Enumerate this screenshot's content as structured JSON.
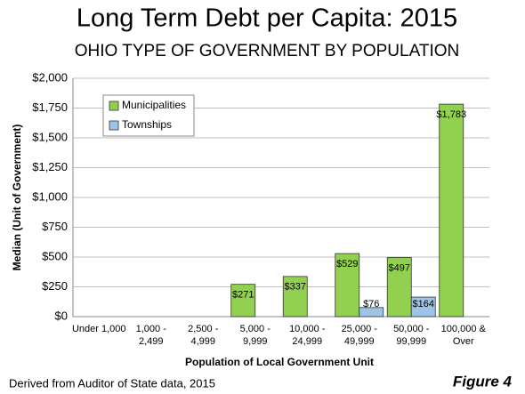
{
  "chart_data": {
    "type": "bar",
    "title": "Long Term Debt per Capita: 2015",
    "subtitle": "OHIO TYPE OF GOVERNMENT BY POPULATION",
    "y_label": "Median  (Unit of Government)",
    "x_label": "Population of Local Government Unit",
    "source": "Derived from Auditor of State data, 2015",
    "figure": "Figure 4",
    "categories": [
      [
        "Under 1,000"
      ],
      [
        "1,000 -",
        "2,499"
      ],
      [
        "2,500 -",
        "4,999"
      ],
      [
        "5,000 -",
        "9,999"
      ],
      [
        "10,000 -",
        "24,999"
      ],
      [
        "25,000 -",
        "49,999"
      ],
      [
        "50,000 -",
        "99,999"
      ],
      [
        "100,000 &",
        "Over"
      ]
    ],
    "series": [
      {
        "name": "Municipalities",
        "color": "#92d050",
        "values": [
          null,
          null,
          null,
          271,
          337,
          529,
          497,
          1783
        ],
        "value_labels": [
          null,
          null,
          null,
          "$271",
          "$337",
          "$529",
          "$497",
          "$1,783"
        ]
      },
      {
        "name": "Townships",
        "color": "#9dc3e6",
        "values": [
          null,
          null,
          null,
          null,
          null,
          76,
          164,
          null
        ],
        "value_labels": [
          null,
          null,
          null,
          null,
          null,
          "$76",
          "$164",
          null
        ]
      }
    ],
    "ylim": [
      0,
      2000
    ],
    "yticks": [
      {
        "value": 0,
        "label": "$0"
      },
      {
        "value": 250,
        "label": "$250"
      },
      {
        "value": 500,
        "label": "$500"
      },
      {
        "value": 750,
        "label": "$750"
      },
      {
        "value": 1000,
        "label": "$1,000"
      },
      {
        "value": 1250,
        "label": "$1,250"
      },
      {
        "value": 1500,
        "label": "$1,500"
      },
      {
        "value": 1750,
        "label": "$1,750"
      },
      {
        "value": 2000,
        "label": "$2,000"
      }
    ],
    "grid": true,
    "legend": "top-left"
  }
}
